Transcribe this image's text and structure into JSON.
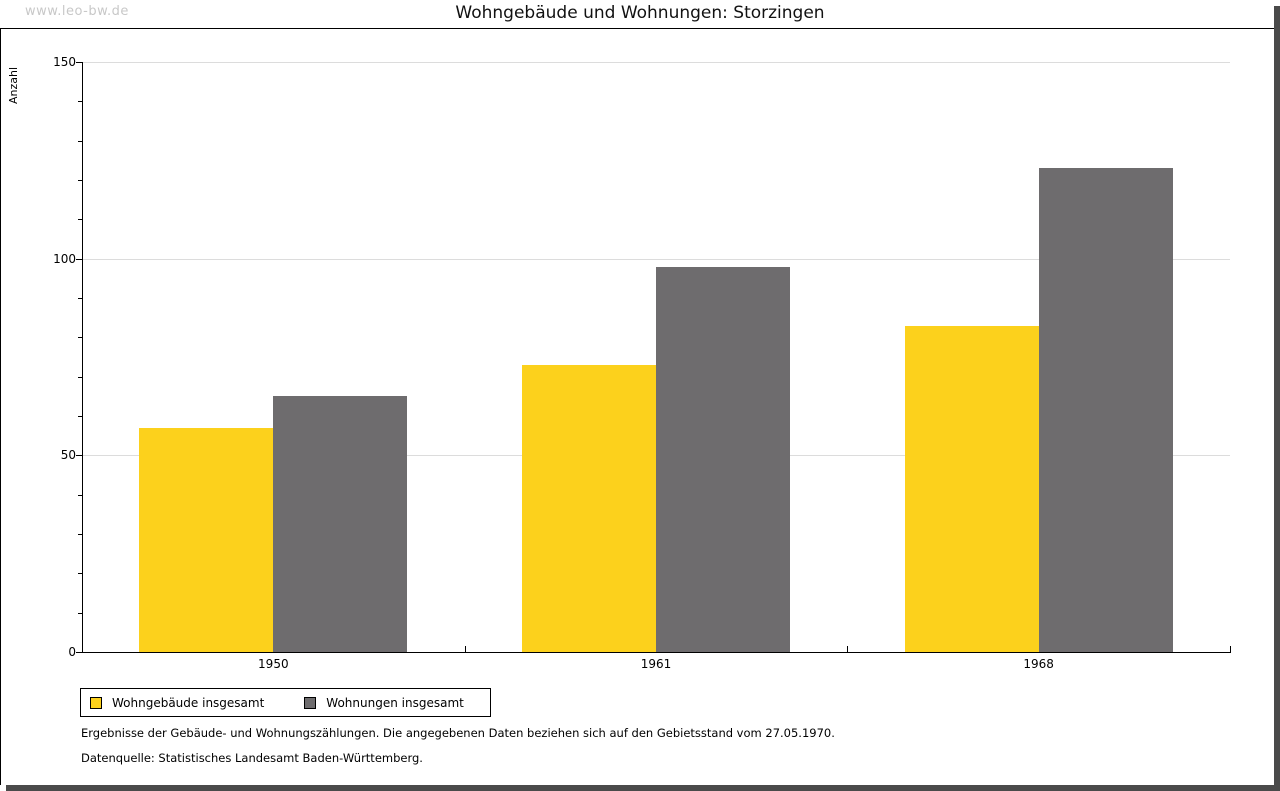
{
  "watermark": "www.leo-bw.de",
  "title": "Wohngebäude und Wohnungen: Storzingen",
  "chart_data": {
    "type": "bar",
    "title": "Wohngebäude und Wohnungen: Storzingen",
    "categories": [
      "1950",
      "1961",
      "1968"
    ],
    "series": [
      {
        "name": "Wohngebäude insgesamt",
        "color": "#FCD11C",
        "values": [
          57,
          73,
          83
        ]
      },
      {
        "name": "Wohnungen insgesamt",
        "color": "#6E6C6E",
        "values": [
          65,
          98,
          123
        ]
      }
    ],
    "xlabel": "",
    "ylabel": "Anzahl",
    "ylim": [
      0,
      150
    ],
    "yticks": [
      0,
      50,
      100,
      150
    ],
    "ytick_minor_step": 10,
    "grid": true,
    "gridline_color": "#dcdcdc",
    "legend_position": "bottom-left"
  },
  "footnotes": {
    "line1": "Ergebnisse der Gebäude- und Wohnungszählungen. Die angegebenen Daten beziehen sich auf den Gebietsstand vom 27.05.1970.",
    "line2": "Datenquelle: Statistisches Landesamt Baden-Württemberg."
  },
  "frame": {
    "border_color": "#000000",
    "shadow_color": "#4a4a4a",
    "watermark_color": "#c8c8c8"
  }
}
